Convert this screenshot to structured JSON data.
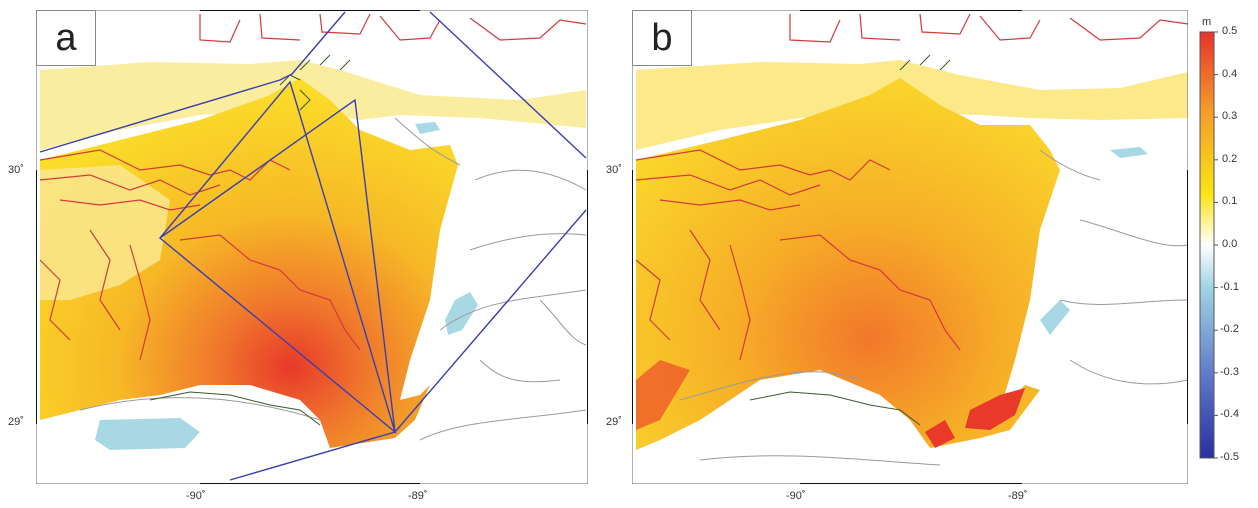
{
  "panels": [
    {
      "label": "a",
      "y_ticks": [
        "30˚",
        "29˚"
      ],
      "x_ticks": [
        "-90˚",
        "-89˚"
      ],
      "has_model_domains": true
    },
    {
      "label": "b",
      "y_ticks": [
        "30˚",
        "29˚"
      ],
      "x_ticks": [
        "-90˚",
        "-89˚"
      ],
      "has_model_domains": false
    }
  ],
  "colorbar": {
    "unit": "m",
    "ticks": [
      "0.5",
      "0.4",
      "0.3",
      "0.2",
      "0.1",
      "0.0",
      "-0.1",
      "-0.2",
      "-0.3",
      "-0.4",
      "-0.5"
    ],
    "range": [
      -0.5,
      0.5
    ],
    "colors": {
      "top": "#e8322a",
      "upper": "#f39a2b",
      "mid_high": "#fce414",
      "zero": "#ffffff",
      "mid_low": "#9fd4e4",
      "low": "#5a73c6",
      "bottom": "#2a2f9e"
    }
  },
  "colors": {
    "coastline": "#d43a3a",
    "land_boundary": "#9a9a9a",
    "domain_outline": "#3a3fb0",
    "water_anomaly_positive": "#f5c21c",
    "water_anomaly_negative": "#a8d8e3"
  }
}
